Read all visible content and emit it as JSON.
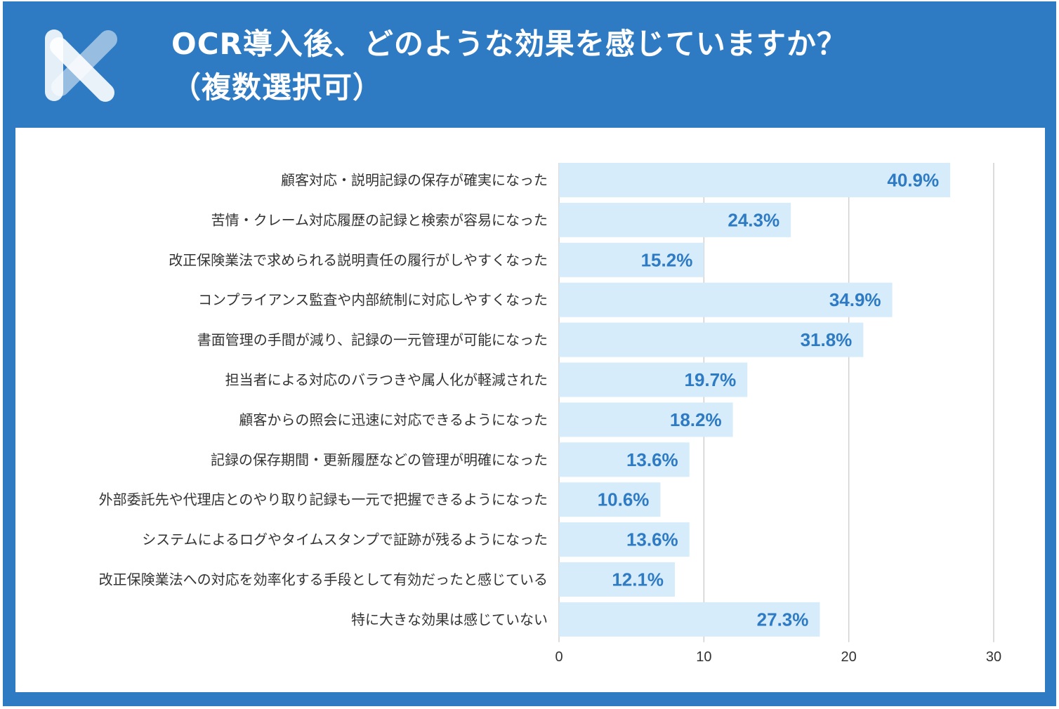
{
  "header": {
    "title_line1": "OCR導入後、どのような効果を感じていますか？",
    "title_line2": "（複数選択可）"
  },
  "colors": {
    "frame": "#2e7bc4",
    "bar": "#d6ecfb",
    "value_text": "#2e7bc4",
    "grid": "#d0d0d0"
  },
  "chart_data": {
    "type": "bar",
    "orientation": "horizontal",
    "title": "OCR導入後、どのような効果を感じていますか？（複数選択可）",
    "categories": [
      "顧客対応・説明記録の保存が確実になった",
      "苦情・クレーム対応履歴の記録と検索が容易になった",
      "改正保険業法で求められる説明責任の履行がしやすくなった",
      "コンプライアンス監査や内部統制に対応しやすくなった",
      "書面管理の手間が減り、記録の一元管理が可能になった",
      "担当者による対応のバラつきや属人化が軽減された",
      "顧客からの照会に迅速に対応できるようになった",
      "記録の保存期間・更新履歴などの管理が明確になった",
      "外部委託先や代理店とのやり取り記録も一元で把握できるようになった",
      "システムによるログやタイムスタンプで証跡が残るようになった",
      "改正保険業法への対応を効率化する手段として有効だったと感じている",
      "特に大きな効果は感じていない"
    ],
    "values": [
      27,
      16,
      10,
      23,
      21,
      13,
      12,
      9,
      7,
      9,
      8,
      18
    ],
    "value_labels": [
      "40.9%",
      "24.3%",
      "15.2%",
      "34.9%",
      "31.8%",
      "19.7%",
      "18.2%",
      "13.6%",
      "10.6%",
      "13.6%",
      "12.1%",
      "27.3%"
    ],
    "xlim": [
      0,
      30
    ],
    "xticks": [
      "0",
      "10",
      "20",
      "30"
    ],
    "grid": true,
    "xlabel": "",
    "ylabel": ""
  }
}
